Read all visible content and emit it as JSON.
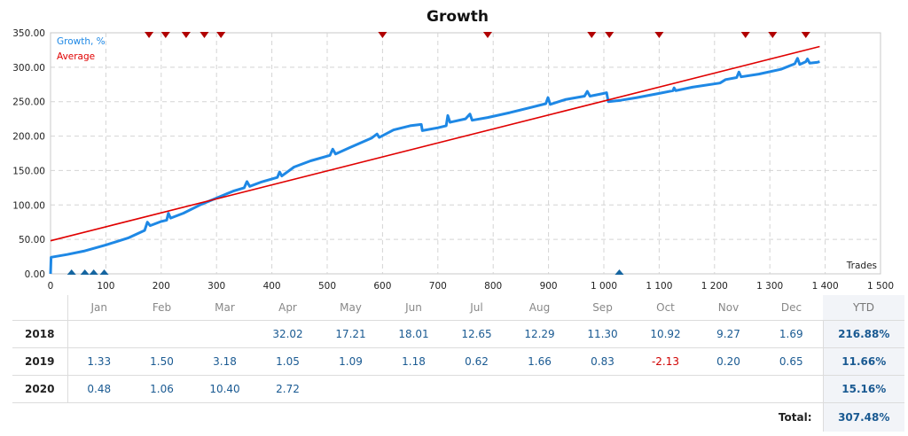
{
  "chart_data": {
    "type": "line",
    "title": "Growth",
    "xlabel": "Trades",
    "ylabel": "",
    "xlim": [
      0,
      1500
    ],
    "ylim": [
      0,
      350
    ],
    "x_ticks": [
      "0",
      "100",
      "200",
      "300",
      "400",
      "500",
      "600",
      "700",
      "800",
      "900",
      "1 000",
      "1 100",
      "1 200",
      "1 300",
      "1 400",
      "1 500"
    ],
    "y_ticks": [
      "0.00",
      "50.00",
      "100.00",
      "150.00",
      "200.00",
      "250.00",
      "300.00",
      "350.00"
    ],
    "grid": true,
    "legend_placement": "top-left",
    "colors": {
      "growth": "#1e88e5",
      "average": "#e00000",
      "markers_top": "#b00000",
      "markers_bottom": "#1565a0"
    },
    "series": [
      {
        "name": "Growth, %",
        "points": [
          [
            0,
            0
          ],
          [
            1,
            24
          ],
          [
            30,
            28
          ],
          [
            60,
            33
          ],
          [
            100,
            42
          ],
          [
            140,
            52
          ],
          [
            170,
            63
          ],
          [
            175,
            75
          ],
          [
            180,
            70
          ],
          [
            200,
            76
          ],
          [
            210,
            78
          ],
          [
            213,
            88
          ],
          [
            217,
            81
          ],
          [
            240,
            88
          ],
          [
            270,
            100
          ],
          [
            300,
            110
          ],
          [
            330,
            120
          ],
          [
            350,
            125
          ],
          [
            355,
            134
          ],
          [
            360,
            127
          ],
          [
            380,
            133
          ],
          [
            410,
            140
          ],
          [
            414,
            148
          ],
          [
            418,
            142
          ],
          [
            440,
            155
          ],
          [
            470,
            164
          ],
          [
            505,
            172
          ],
          [
            510,
            181
          ],
          [
            515,
            174
          ],
          [
            540,
            183
          ],
          [
            580,
            197
          ],
          [
            590,
            203
          ],
          [
            594,
            198
          ],
          [
            620,
            209
          ],
          [
            650,
            215
          ],
          [
            670,
            217
          ],
          [
            672,
            208
          ],
          [
            700,
            212
          ],
          [
            715,
            215
          ],
          [
            718,
            230
          ],
          [
            722,
            220
          ],
          [
            750,
            225
          ],
          [
            758,
            232
          ],
          [
            762,
            223
          ],
          [
            790,
            227
          ],
          [
            830,
            234
          ],
          [
            870,
            242
          ],
          [
            895,
            247
          ],
          [
            899,
            256
          ],
          [
            903,
            246
          ],
          [
            930,
            253
          ],
          [
            965,
            258
          ],
          [
            970,
            265
          ],
          [
            975,
            258
          ],
          [
            1000,
            262
          ],
          [
            1005,
            263
          ],
          [
            1008,
            250
          ],
          [
            1030,
            252
          ],
          [
            1060,
            256
          ],
          [
            1100,
            262
          ],
          [
            1125,
            266
          ],
          [
            1127,
            270
          ],
          [
            1130,
            266
          ],
          [
            1160,
            271
          ],
          [
            1210,
            277
          ],
          [
            1220,
            282
          ],
          [
            1240,
            285
          ],
          [
            1244,
            293
          ],
          [
            1248,
            286
          ],
          [
            1280,
            290
          ],
          [
            1320,
            297
          ],
          [
            1345,
            305
          ],
          [
            1350,
            313
          ],
          [
            1354,
            304
          ],
          [
            1365,
            308
          ],
          [
            1368,
            312
          ],
          [
            1372,
            306
          ],
          [
            1385,
            307
          ],
          [
            1390,
            308
          ]
        ]
      },
      {
        "name": "Average",
        "points": [
          [
            0,
            48
          ],
          [
            1390,
            330
          ]
        ]
      }
    ],
    "markers_top_x": [
      178,
      208,
      245,
      278,
      308,
      600,
      790,
      978,
      1010,
      1100,
      1256,
      1305,
      1365
    ],
    "markers_bottom_x": [
      38,
      62,
      78,
      97,
      1028
    ]
  },
  "table": {
    "headers": [
      "",
      "Jan",
      "Feb",
      "Mar",
      "Apr",
      "May",
      "Jun",
      "Jul",
      "Aug",
      "Sep",
      "Oct",
      "Nov",
      "Dec",
      "YTD"
    ],
    "rows": [
      {
        "year": "2018",
        "values": [
          "",
          "",
          "",
          "32.02",
          "17.21",
          "18.01",
          "12.65",
          "12.29",
          "11.30",
          "10.92",
          "9.27",
          "1.69"
        ],
        "ytd": "216.88%"
      },
      {
        "year": "2019",
        "values": [
          "1.33",
          "1.50",
          "3.18",
          "1.05",
          "1.09",
          "1.18",
          "0.62",
          "1.66",
          "0.83",
          "-2.13",
          "0.20",
          "0.65"
        ],
        "ytd": "11.66%"
      },
      {
        "year": "2020",
        "values": [
          "0.48",
          "1.06",
          "10.40",
          "2.72",
          "",
          "",
          "",
          "",
          "",
          "",
          "",
          ""
        ],
        "ytd": "15.16%"
      }
    ],
    "total_label": "Total:",
    "total_value": "307.48%"
  }
}
